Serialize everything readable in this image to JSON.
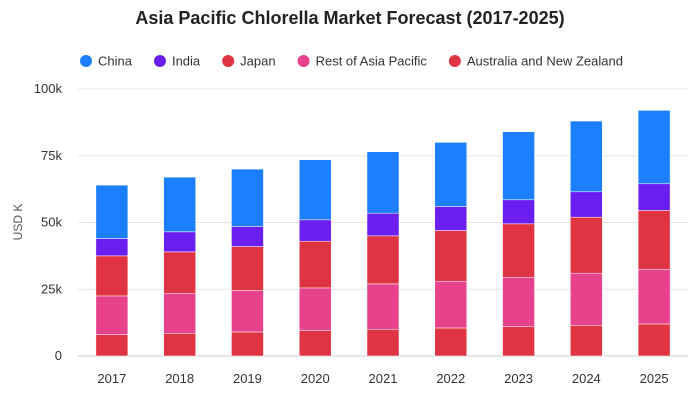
{
  "chart_data": {
    "type": "bar",
    "stacked": true,
    "title": "Asia Pacific Chlorella Market Forecast (2017-2025)",
    "xlabel": "",
    "ylabel": "USD K",
    "ylim": [
      0,
      100000
    ],
    "yticks": [
      0,
      25000,
      50000,
      75000,
      100000
    ],
    "ytick_labels": [
      "0",
      "25k",
      "50k",
      "75k",
      "100k"
    ],
    "grid": true,
    "legend_position": "top-left",
    "categories": [
      "2017",
      "2018",
      "2019",
      "2020",
      "2021",
      "2022",
      "2023",
      "2024",
      "2025"
    ],
    "series": [
      {
        "name": "Australia and New Zealand",
        "color": "#E13442",
        "values": [
          8000,
          8500,
          9000,
          9500,
          10000,
          10500,
          11000,
          11500,
          12000
        ]
      },
      {
        "name": "Rest of Asia Pacific",
        "color": "#E8428C",
        "values": [
          14500,
          15000,
          15500,
          16000,
          17000,
          17500,
          18500,
          19500,
          20500
        ]
      },
      {
        "name": "Japan",
        "color": "#E13442",
        "values": [
          15000,
          15500,
          16500,
          17500,
          18000,
          19000,
          20000,
          21000,
          22000
        ]
      },
      {
        "name": "India",
        "color": "#6B1EF0",
        "values": [
          6500,
          7500,
          7500,
          8000,
          8500,
          9000,
          9000,
          9500,
          10000
        ]
      },
      {
        "name": "China",
        "color": "#1C7FFF",
        "values": [
          20000,
          20500,
          21500,
          22500,
          23000,
          24000,
          25500,
          26500,
          27500
        ]
      }
    ],
    "legend_order": [
      "China",
      "India",
      "Japan",
      "Rest of Asia Pacific",
      "Australia and New Zealand"
    ]
  }
}
